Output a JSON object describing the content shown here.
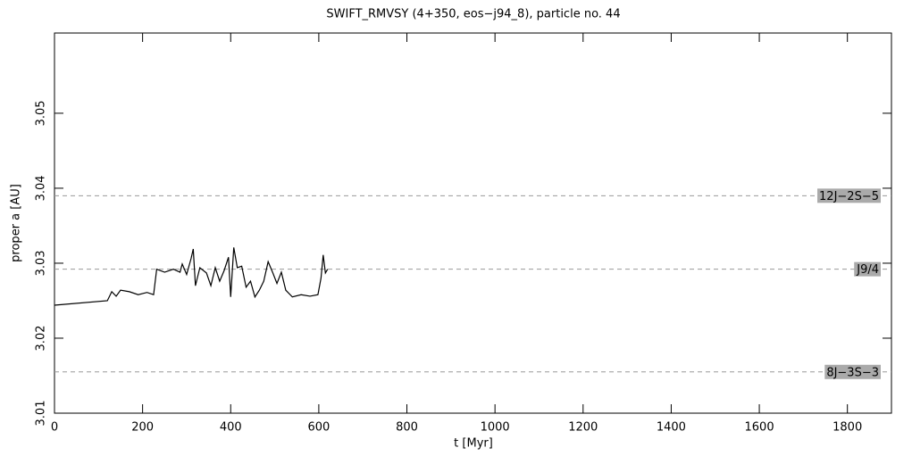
{
  "chart_data": {
    "type": "line",
    "title": "SWIFT_RMVSY (4+350, eos−j94_8), particle no. 44",
    "x_label": "t [Myr]",
    "y_label": "proper a [AU]",
    "x": [
      0,
      120,
      130,
      140,
      150,
      170,
      190,
      210,
      225,
      232,
      250,
      270,
      285,
      290,
      300,
      310,
      315,
      320,
      330,
      345,
      355,
      365,
      375,
      385,
      395,
      400,
      407,
      415,
      425,
      435,
      445,
      455,
      465,
      475,
      485,
      495,
      505,
      515,
      525,
      540,
      560,
      580,
      598,
      605,
      610,
      615,
      620
    ],
    "series": [
      {
        "name": "particle",
        "color": "#000000",
        "values": [
          3.0244,
          3.025,
          3.0262,
          3.0256,
          3.0264,
          3.0262,
          3.0258,
          3.0261,
          3.0258,
          3.0292,
          3.0288,
          3.0292,
          3.0288,
          3.0299,
          3.0285,
          3.0306,
          3.0319,
          3.027,
          3.0294,
          3.0287,
          3.027,
          3.0294,
          3.0276,
          3.029,
          3.0308,
          3.0255,
          3.0321,
          3.0294,
          3.0296,
          3.0268,
          3.0276,
          3.0255,
          3.0264,
          3.0276,
          3.0302,
          3.0288,
          3.0273,
          3.0288,
          3.0264,
          3.0255,
          3.0258,
          3.0256,
          3.0258,
          3.028,
          3.0311,
          3.0287,
          3.0292
        ]
      }
    ],
    "resonances": [
      {
        "label": "12J−2S−5",
        "value": 3.039
      },
      {
        "label": "J9/4",
        "value": 3.0292
      },
      {
        "label": "8J−3S−3",
        "value": 3.0155
      }
    ],
    "xlim": [
      0,
      1900
    ],
    "xticks": [
      0,
      200,
      400,
      600,
      800,
      1000,
      1200,
      1400,
      1600,
      1800
    ],
    "ylim": [
      3.01,
      3.0607
    ],
    "yticks": [
      3.01,
      3.02,
      3.03,
      3.04,
      3.05
    ]
  }
}
